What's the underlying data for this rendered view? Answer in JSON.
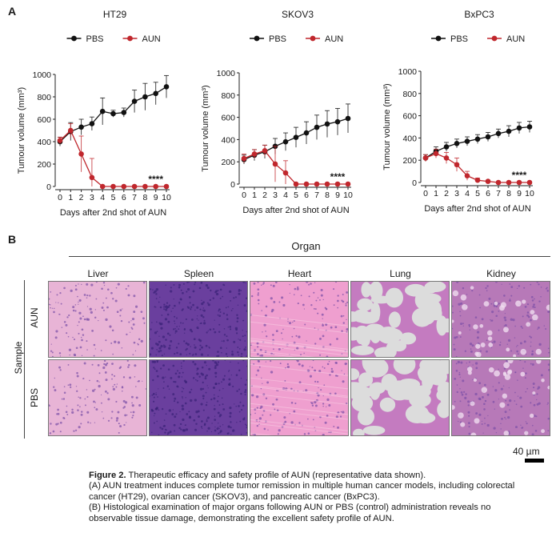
{
  "panel_a_letter": "A",
  "panel_b_letter": "B",
  "chart_data": [
    {
      "type": "line",
      "title": "HT29",
      "xlabel": "Days after 2nd shot of AUN",
      "ylabel": "Tumour volume (mm³)",
      "x": [
        0,
        1,
        2,
        3,
        4,
        5,
        6,
        7,
        8,
        9,
        10
      ],
      "xlim": [
        0,
        10
      ],
      "ylim": [
        0,
        1000
      ],
      "yticks": [
        0,
        200,
        400,
        600,
        800,
        1000
      ],
      "legend": "top-center",
      "significance": "****",
      "series": [
        {
          "name": "PBS",
          "color": "#111111",
          "x": [
            0,
            1,
            2,
            3,
            4,
            5,
            6,
            7,
            8,
            9,
            10
          ],
          "values": [
            400,
            490,
            530,
            560,
            670,
            650,
            660,
            760,
            800,
            830,
            890
          ],
          "errors": [
            40,
            80,
            70,
            60,
            120,
            30,
            40,
            100,
            120,
            100,
            100
          ]
        },
        {
          "name": "AUN",
          "color": "#c0272d",
          "x": [
            0,
            1,
            2,
            3,
            4,
            5,
            6,
            7,
            8,
            9,
            10
          ],
          "values": [
            410,
            500,
            290,
            80,
            0,
            0,
            0,
            0,
            0,
            0,
            0
          ],
          "errors": [
            30,
            60,
            160,
            170,
            0,
            0,
            0,
            0,
            0,
            0,
            0
          ]
        }
      ]
    },
    {
      "type": "line",
      "title": "SKOV3",
      "xlabel": "Days after 2nd shot of AUN",
      "ylabel": "Tumour volume (mm³)",
      "x": [
        0,
        1,
        2,
        3,
        4,
        5,
        6,
        7,
        8,
        9,
        10
      ],
      "xlim": [
        0,
        10
      ],
      "ylim": [
        0,
        1000
      ],
      "yticks": [
        0,
        200,
        400,
        600,
        800,
        1000
      ],
      "legend": "top-center",
      "significance": "****",
      "series": [
        {
          "name": "PBS",
          "color": "#111111",
          "x": [
            0,
            1,
            2,
            3,
            4,
            5,
            6,
            7,
            8,
            9,
            10
          ],
          "values": [
            220,
            260,
            290,
            340,
            380,
            420,
            460,
            510,
            540,
            560,
            590
          ],
          "errors": [
            40,
            50,
            60,
            70,
            80,
            90,
            100,
            110,
            120,
            120,
            130
          ]
        },
        {
          "name": "AUN",
          "color": "#c0272d",
          "x": [
            0,
            1,
            2,
            3,
            4,
            5,
            6,
            7,
            8,
            9,
            10
          ],
          "values": [
            230,
            270,
            300,
            180,
            100,
            0,
            0,
            0,
            0,
            0,
            0
          ],
          "errors": [
            40,
            40,
            50,
            160,
            110,
            0,
            0,
            0,
            0,
            0,
            0
          ]
        }
      ]
    },
    {
      "type": "line",
      "title": "BxPC3",
      "xlabel": "Days after 2nd shot of AUN",
      "ylabel": "Tumour volume (mm³)",
      "x": [
        0,
        1,
        2,
        3,
        4,
        5,
        6,
        7,
        8,
        9,
        10
      ],
      "xlim": [
        0,
        10
      ],
      "ylim": [
        0,
        1000
      ],
      "yticks": [
        0,
        200,
        400,
        600,
        800,
        1000
      ],
      "legend": "top-center",
      "significance": "****",
      "series": [
        {
          "name": "PBS",
          "color": "#111111",
          "x": [
            0,
            1,
            2,
            3,
            4,
            5,
            6,
            7,
            8,
            9,
            10
          ],
          "values": [
            220,
            280,
            320,
            350,
            370,
            390,
            410,
            440,
            460,
            490,
            500
          ],
          "errors": [
            30,
            40,
            40,
            40,
            40,
            40,
            40,
            40,
            50,
            50,
            50
          ]
        },
        {
          "name": "AUN",
          "color": "#c0272d",
          "x": [
            0,
            1,
            2,
            3,
            4,
            5,
            6,
            7,
            8,
            9,
            10
          ],
          "values": [
            220,
            260,
            220,
            160,
            60,
            20,
            10,
            0,
            0,
            0,
            0
          ],
          "errors": [
            30,
            40,
            50,
            60,
            40,
            20,
            10,
            0,
            0,
            0,
            0
          ]
        }
      ]
    }
  ],
  "histology": {
    "group_header": "Organ",
    "organs": [
      "Liver",
      "Spleen",
      "Heart",
      "Lung",
      "Kidney"
    ],
    "rows_title": "Sample",
    "samples": [
      "AUN",
      "PBS"
    ],
    "scale_bar": "40 µm"
  },
  "caption": {
    "title": "Figure 2.",
    "title_rest": " Therapeutic  efficacy and safety profile of AUN (representative data shown).",
    "line_a": "(A) AUN treatment induces complete tumor remission in multiple human cancer models, including colorectal cancer (HT29),  ovarian cancer (SKOV3), and pancreatic cancer (BxPC3).",
    "line_b": "(B) Histological examination of major organs following AUN or PBS (control) administration reveals no observable tissue damage, demonstrating the excellent safety profile of AUN."
  },
  "colors": {
    "pbs": "#111111",
    "aun": "#c0272d",
    "liver": "#e8b4d6",
    "spleen": "#6a3f9e",
    "heart": "#ef9fcf",
    "lung_bg": "#dcdcdc",
    "lung_tissue": "#c47bc0",
    "kidney": "#b779b8"
  }
}
